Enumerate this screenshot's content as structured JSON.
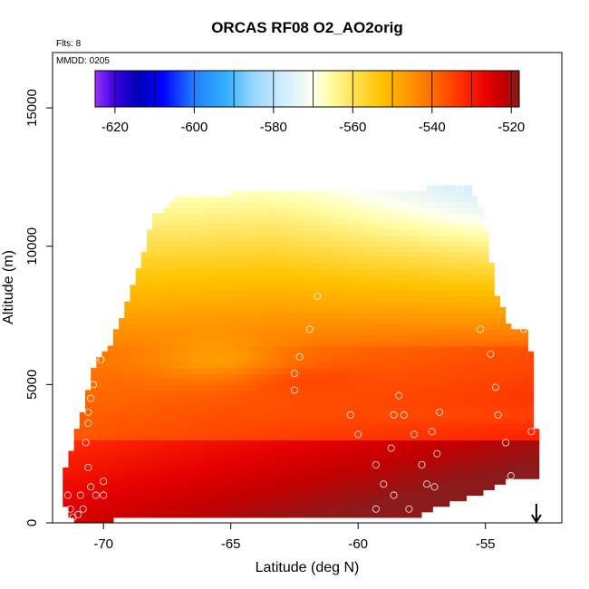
{
  "chart_data": {
    "type": "heatmap",
    "title": "ORCAS RF08 O2_AO2orig",
    "flights_label": "Flts: 8",
    "date_label": "MMDD: 0205",
    "xlabel": "Latitude (deg N)",
    "ylabel": "Altitude (m)",
    "xlim": [
      -72.0,
      -52.0
    ],
    "ylim": [
      0,
      17000
    ],
    "x_ticks": [
      -70,
      -65,
      -60,
      -55
    ],
    "x_tick_labels": [
      "-70",
      "-65",
      "-60",
      "-55"
    ],
    "y_ticks": [
      0,
      5000,
      10000,
      15000
    ],
    "y_tick_labels": [
      "0",
      "5000",
      "10000",
      "15000"
    ],
    "colorbar": {
      "min": -625,
      "max": -518,
      "ticks": [
        -620,
        -600,
        -580,
        -560,
        -540,
        -520
      ],
      "tick_labels": [
        "-620",
        "-600",
        "-580",
        "-560",
        "-540",
        "-520"
      ],
      "stops": [
        [
          -625,
          "#9b30ff"
        ],
        [
          -620,
          "#3a00e0"
        ],
        [
          -614,
          "#0000b8"
        ],
        [
          -608,
          "#0000ff"
        ],
        [
          -600,
          "#1f7fff"
        ],
        [
          -592,
          "#33b0ff"
        ],
        [
          -585,
          "#99d6ff"
        ],
        [
          -578,
          "#ccecff"
        ],
        [
          -570,
          "#fffff0"
        ],
        [
          -566,
          "#ffffaa"
        ],
        [
          -560,
          "#ffe35a"
        ],
        [
          -553,
          "#ffc400"
        ],
        [
          -546,
          "#ff9900"
        ],
        [
          -539,
          "#ff6600"
        ],
        [
          -532,
          "#ff2a00"
        ],
        [
          -526,
          "#e60000"
        ],
        [
          -522,
          "#c00000"
        ],
        [
          -518,
          "#8b1a1a"
        ]
      ]
    },
    "field": {
      "x_range": [
        -71.6,
        -53.0
      ],
      "y_range": [
        0,
        12200
      ],
      "coverage_top": [
        [
          -71.6,
          1600
        ],
        [
          -70.3,
          5800
        ],
        [
          -69.8,
          6300
        ],
        [
          -68.9,
          8400
        ],
        [
          -68.0,
          11100
        ],
        [
          -67.0,
          11800
        ],
        [
          -63.0,
          12000
        ],
        [
          -59.0,
          12000
        ],
        [
          -55.7,
          12200
        ],
        [
          -55.1,
          11300
        ],
        [
          -54.6,
          8300
        ],
        [
          -54.0,
          7000
        ],
        [
          -53.3,
          7000
        ],
        [
          -53.0,
          3300
        ]
      ],
      "coverage_bottom": [
        [
          -71.6,
          800
        ],
        [
          -71.2,
          0
        ],
        [
          -69.7,
          0
        ],
        [
          -69.5,
          300
        ],
        [
          -57.6,
          300
        ],
        [
          -55.4,
          1000
        ],
        [
          -54.2,
          1500
        ],
        [
          -53.0,
          1700
        ]
      ]
    },
    "observations_lat_alt": [
      [
        -71.4,
        1000
      ],
      [
        -71.3,
        500
      ],
      [
        -71.2,
        200
      ],
      [
        -71.0,
        300
      ],
      [
        -70.9,
        1000
      ],
      [
        -70.8,
        500
      ],
      [
        -70.6,
        2000
      ],
      [
        -70.5,
        1300
      ],
      [
        -70.3,
        1000
      ],
      [
        -70.0,
        1500
      ],
      [
        -70.0,
        1000
      ],
      [
        -70.6,
        4000
      ],
      [
        -70.5,
        4500
      ],
      [
        -70.4,
        5000
      ],
      [
        -70.1,
        5900
      ],
      [
        -70.7,
        2900
      ],
      [
        -70.6,
        3600
      ],
      [
        -62.5,
        5400
      ],
      [
        -62.5,
        4800
      ],
      [
        -62.3,
        6000
      ],
      [
        -61.9,
        7000
      ],
      [
        -61.6,
        8200
      ],
      [
        -64.5,
        11800
      ],
      [
        -63.3,
        11800
      ],
      [
        -60.3,
        3900
      ],
      [
        -60.0,
        3200
      ],
      [
        -59.3,
        2100
      ],
      [
        -59.0,
        1400
      ],
      [
        -58.7,
        2700
      ],
      [
        -58.6,
        3900
      ],
      [
        -58.4,
        4600
      ],
      [
        -58.2,
        3900
      ],
      [
        -57.8,
        3200
      ],
      [
        -57.5,
        2100
      ],
      [
        -57.3,
        1400
      ],
      [
        -57.1,
        3300
      ],
      [
        -56.9,
        2500
      ],
      [
        -56.8,
        4000
      ],
      [
        -58.0,
        500
      ],
      [
        -59.3,
        500
      ],
      [
        -58.6,
        1000
      ],
      [
        -55.2,
        7000
      ],
      [
        -54.8,
        6100
      ],
      [
        -54.6,
        4900
      ],
      [
        -54.5,
        3900
      ],
      [
        -54.2,
        2900
      ],
      [
        -54.0,
        1700
      ],
      [
        -60.9,
        11900
      ],
      [
        -59.0,
        12000
      ],
      [
        -56.0,
        12100
      ],
      [
        -55.2,
        12000
      ],
      [
        -53.5,
        7000
      ],
      [
        -53.2,
        3300
      ],
      [
        -57.0,
        1300
      ]
    ],
    "arrow_at_latitude": -53.0
  }
}
